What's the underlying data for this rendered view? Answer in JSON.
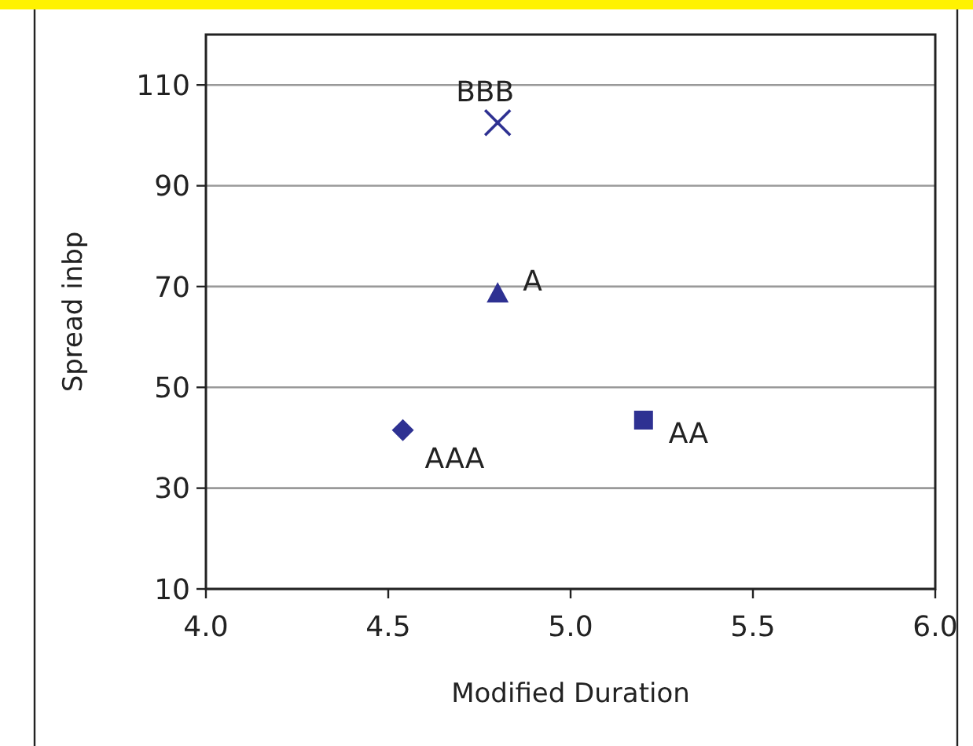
{
  "chart_data": {
    "type": "scatter",
    "xlabel": "Modified Duration",
    "ylabel": "Spread inbp",
    "xlim": [
      4,
      6
    ],
    "xticks": [
      {
        "value": 4,
        "label": "4.0"
      },
      {
        "value": 4.5,
        "label": "4.5"
      },
      {
        "value": 5,
        "label": "5.0"
      },
      {
        "value": 5.5,
        "label": "5.5"
      },
      {
        "value": 6,
        "label": "6.0"
      }
    ],
    "ylim": [
      10,
      120
    ],
    "yticks": [
      10,
      30,
      50,
      70,
      90,
      110
    ],
    "grid": "y",
    "series": [
      {
        "name": "AAA",
        "color": "#2e3192",
        "marker": "diamond",
        "x": [
          4.54
        ],
        "values": [
          41.5
        ]
      },
      {
        "name": "AA",
        "color": "#2e3192",
        "marker": "square",
        "x": [
          5.2
        ],
        "values": [
          43.5
        ]
      },
      {
        "name": "A",
        "color": "#2e3192",
        "marker": "triangle",
        "x": [
          4.8
        ],
        "values": [
          68.7
        ]
      },
      {
        "name": "BBB",
        "color": "#2e3192",
        "marker": "cross",
        "x": [
          4.8
        ],
        "values": [
          102.5
        ]
      }
    ]
  }
}
